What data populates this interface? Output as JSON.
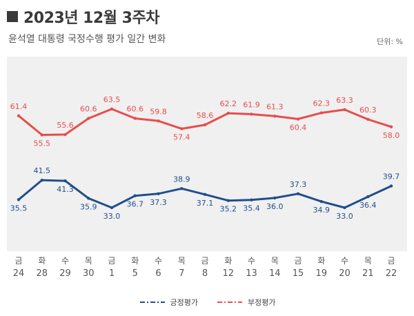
{
  "header": {
    "title": "2023년 12월 3주차",
    "subtitle": "윤석열 대통령 국정수행 평가 일간 변화",
    "unit": "단위: %"
  },
  "colors": {
    "positive": "#1f4e8c",
    "negative": "#e84c4c",
    "plot_background": "#f0f0f0"
  },
  "chart_data": {
    "type": "line",
    "categories": [
      {
        "day": "금",
        "date": "24"
      },
      {
        "day": "화",
        "date": "28"
      },
      {
        "day": "수",
        "date": "29"
      },
      {
        "day": "목",
        "date": "30"
      },
      {
        "day": "금",
        "date": "1"
      },
      {
        "day": "화",
        "date": "5"
      },
      {
        "day": "수",
        "date": "6"
      },
      {
        "day": "목",
        "date": "7"
      },
      {
        "day": "금",
        "date": "8"
      },
      {
        "day": "화",
        "date": "12"
      },
      {
        "day": "수",
        "date": "13"
      },
      {
        "day": "목",
        "date": "14"
      },
      {
        "day": "금",
        "date": "15"
      },
      {
        "day": "화",
        "date": "19"
      },
      {
        "day": "수",
        "date": "20"
      },
      {
        "day": "목",
        "date": "21"
      },
      {
        "day": "금",
        "date": "22"
      }
    ],
    "series": [
      {
        "name": "긍정평가",
        "color": "#1f4e8c",
        "values": [
          35.5,
          41.5,
          41.3,
          35.9,
          33.0,
          36.7,
          37.3,
          38.9,
          37.1,
          35.2,
          35.4,
          36.0,
          37.3,
          34.9,
          33.0,
          36.4,
          39.7
        ],
        "labels": [
          "35.5",
          "41.5",
          "41.3",
          "35.9",
          "33.0",
          "36.7",
          "37.3",
          "38.9",
          "37.1",
          "35.2",
          "35.4",
          "36.0",
          "37.3",
          "34.9",
          "33.0",
          "36.4",
          "39.7"
        ]
      },
      {
        "name": "부정평가",
        "color": "#e84c4c",
        "values": [
          61.4,
          55.5,
          55.6,
          60.6,
          63.5,
          60.6,
          59.8,
          57.4,
          58.6,
          62.2,
          61.9,
          61.3,
          60.4,
          62.3,
          63.3,
          60.3,
          58.0
        ],
        "labels": [
          "61.4",
          "55.5",
          "55.6",
          "60.6",
          "63.5",
          "60.6",
          "59.8",
          "57.4",
          "58.6",
          "62.2",
          "61.9",
          "61.3",
          "60.4",
          "62.3",
          "63.3",
          "60.3",
          "58.0"
        ]
      }
    ],
    "ylim": [
      20,
      75
    ],
    "grid": false,
    "legend_position": "bottom"
  }
}
